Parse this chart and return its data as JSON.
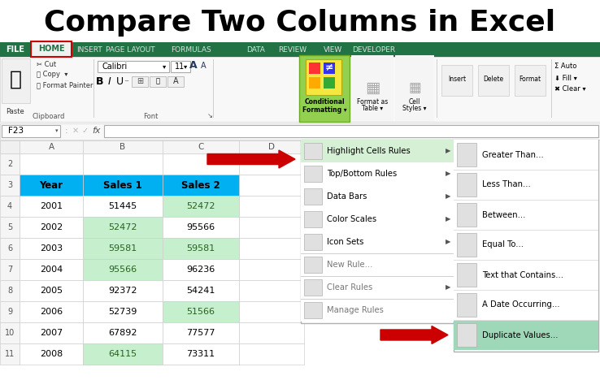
{
  "title": "Compare Two Columns in Excel",
  "bg_color": "#ffffff",
  "ribbon_green": "#217346",
  "tab_labels": [
    "FILE",
    "HOME",
    "INSERT",
    "PAGE LAYOUT",
    "FORMULAS",
    "DATA",
    "REVIEW",
    "VIEW",
    "DEVELOPER"
  ],
  "cell_highlight_green": "#c6efce",
  "cell_text_green": "#276221",
  "header_cyan": "#00b0f0",
  "years": [
    2001,
    2002,
    2003,
    2004,
    2005,
    2006,
    2007,
    2008
  ],
  "sales1": [
    51445,
    52472,
    59581,
    95566,
    92372,
    52739,
    67892,
    64115
  ],
  "sales2": [
    52472,
    95566,
    59581,
    96236,
    54241,
    51566,
    77577,
    73311
  ],
  "sales1_highlighted": [
    0,
    1,
    1,
    1,
    0,
    0,
    0,
    1
  ],
  "sales2_highlighted": [
    1,
    0,
    1,
    0,
    0,
    1,
    0,
    0
  ],
  "dropdown_items": [
    "Highlight Cells Rules",
    "Top/Bottom Rules",
    "Data Bars",
    "Color Scales",
    "Icon Sets",
    "New Rule...",
    "Clear Rules",
    "Manage Rules"
  ],
  "submenu_items": [
    "Greater Than...",
    "Less Than...",
    "Between...",
    "Equal To...",
    "Text that Contains...",
    "A Date Occurring...",
    "Duplicate Values..."
  ],
  "arrow_color": "#cc0000"
}
